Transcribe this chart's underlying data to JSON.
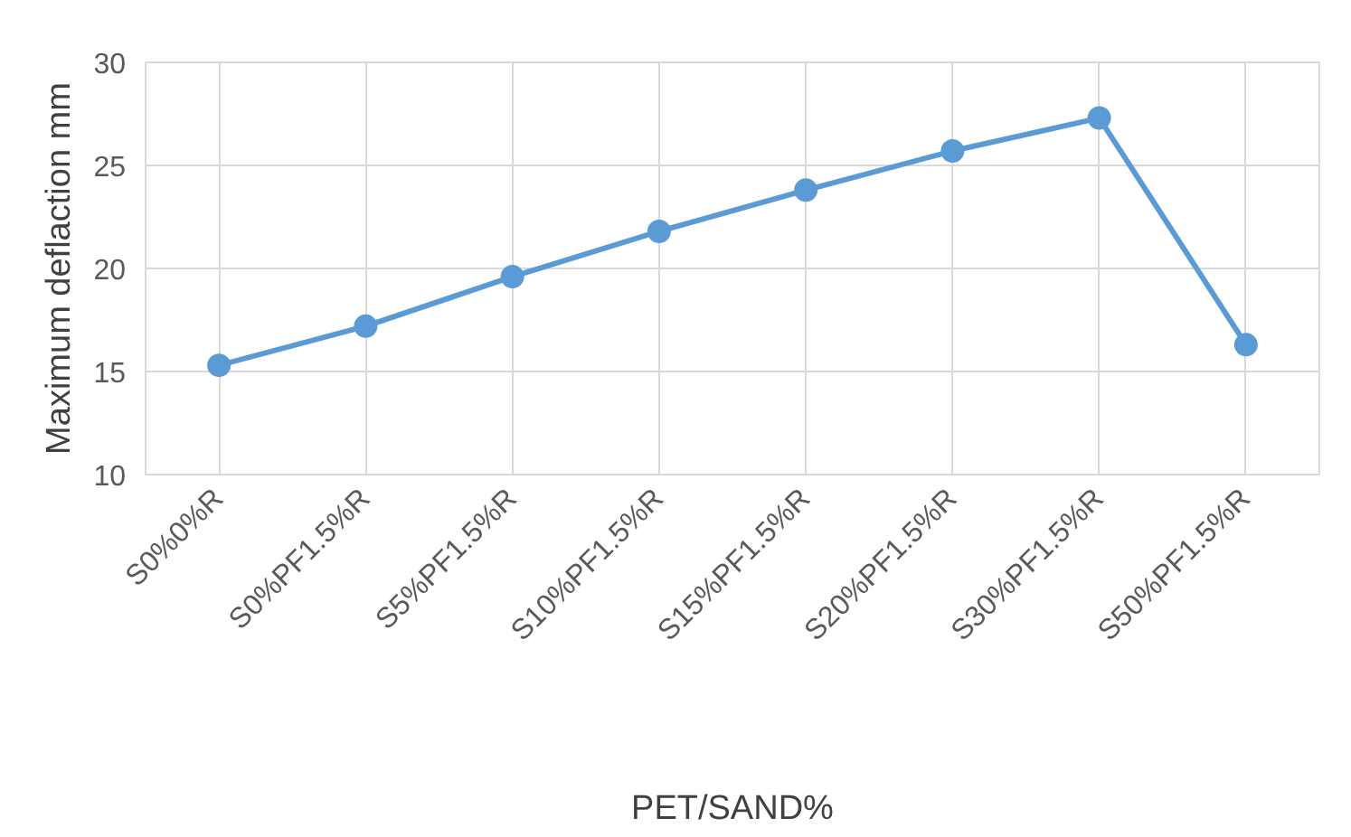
{
  "chart_data": {
    "type": "line",
    "xlabel": "PET/SAND%",
    "ylabel": "Maximum deflaction mm",
    "categories": [
      "S0%0%R",
      "S0%PF1.5%R",
      "S5%PF1.5%R",
      "S10%PF1.5%R",
      "S15%PF1.5%R",
      "S20%PF1.5%R",
      "S30%PF1.5%R",
      "S50%PF1.5%R"
    ],
    "series": [
      {
        "color": "#5b9bd5",
        "values": [
          15.3,
          17.2,
          19.6,
          21.8,
          23.8,
          25.7,
          27.3,
          16.3
        ]
      }
    ],
    "ylim": [
      10,
      30
    ],
    "yticks": [
      10,
      15,
      20,
      25,
      30
    ],
    "grid": true,
    "marker": "circle",
    "line_style": "solid"
  }
}
